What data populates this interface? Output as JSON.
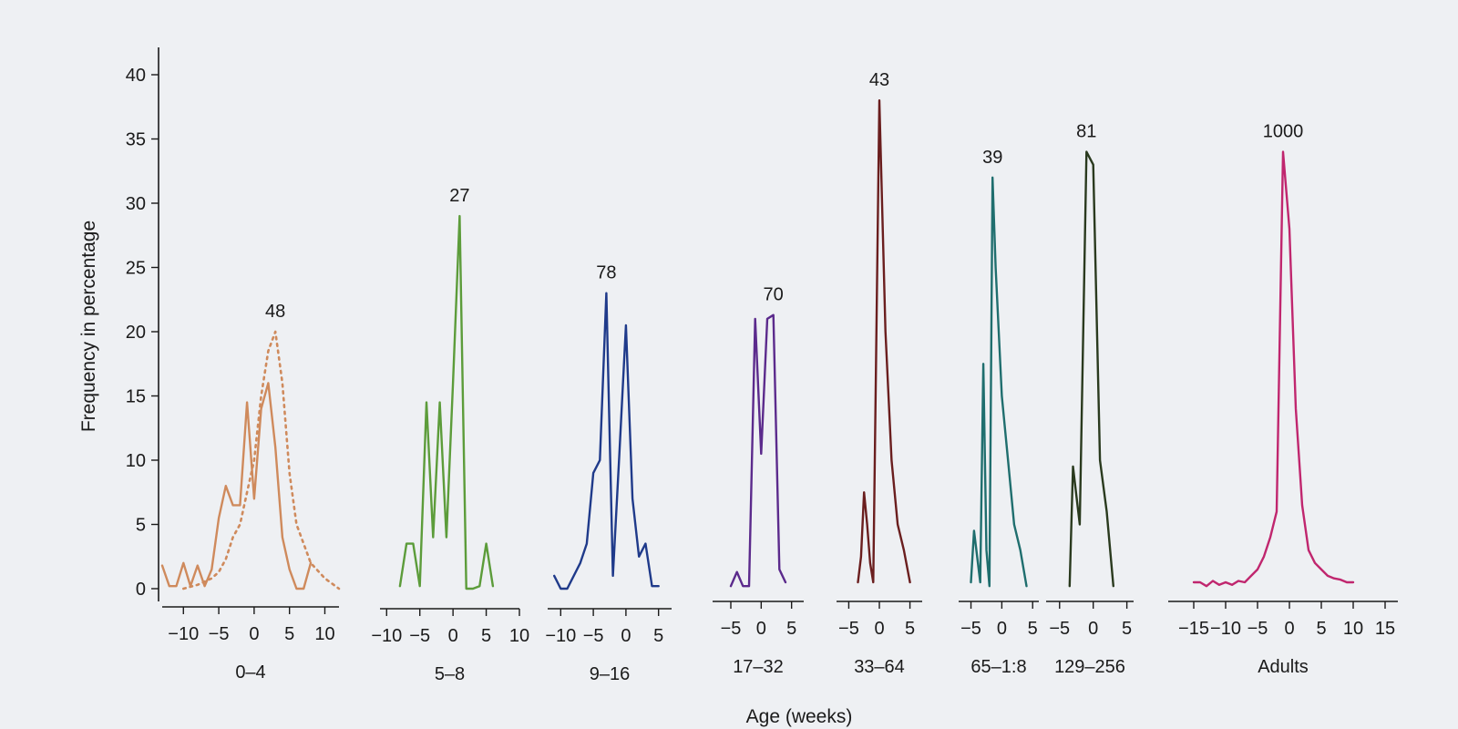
{
  "chart_data": {
    "type": "line",
    "ylabel": "Frequency in percentage",
    "xlabel": "Age (weeks)",
    "ylim": [
      0,
      40
    ],
    "yticks": [
      0,
      5,
      10,
      15,
      20,
      25,
      30,
      35,
      40
    ],
    "grid": false,
    "panels": [
      {
        "label": "0–4",
        "count": "48",
        "color": "#cf8a5c",
        "xlim": [
          -13,
          12
        ],
        "xticks": [
          -10,
          -5,
          0,
          5,
          10
        ],
        "xtick_labels": [
          "−10",
          "−5",
          "0",
          "5",
          "10"
        ],
        "series": [
          {
            "style": "solid",
            "x": [
              -13,
              -12,
              -11,
              -10,
              -9,
              -8,
              -7,
              -6,
              -5,
              -4,
              -3,
              -2,
              -1,
              0,
              1,
              2,
              3,
              4,
              5,
              6,
              7,
              8
            ],
            "y": [
              1.8,
              0.2,
              0.2,
              2,
              0.2,
              1.8,
              0.2,
              1.5,
              5.5,
              8,
              6.5,
              6.5,
              14.5,
              7,
              14,
              16,
              11,
              4,
              1.5,
              0,
              0,
              2
            ]
          },
          {
            "style": "dotted",
            "x": [
              -10,
              -8,
              -6,
              -5,
              -4,
              -3,
              -2,
              -1,
              0,
              1,
              2,
              3,
              4,
              5,
              6,
              7,
              8,
              10,
              12
            ],
            "y": [
              0,
              0.3,
              0.8,
              1.3,
              2.3,
              4,
              5,
              7.5,
              10,
              15,
              18.5,
              20,
              16,
              9,
              5,
              3.5,
              2,
              0.8,
              0
            ]
          }
        ]
      },
      {
        "label": "5–8",
        "count": "27",
        "color": "#5c9c3a",
        "xlim": [
          -11,
          10
        ],
        "xticks": [
          -10,
          -5,
          0,
          5,
          10
        ],
        "xtick_labels": [
          "−10",
          "−5",
          "0",
          "5",
          "10"
        ],
        "series": [
          {
            "style": "solid",
            "x": [
              -8,
              -7,
              -6,
              -5,
              -4,
              -3,
              -2,
              -1,
              0,
              1,
              2,
              3,
              4,
              5,
              6
            ],
            "y": [
              0.2,
              3.5,
              3.5,
              0.2,
              14.5,
              4,
              14.5,
              4,
              16,
              29,
              0,
              0,
              0.2,
              3.5,
              0.2
            ]
          }
        ]
      },
      {
        "label": "9–16",
        "count": "78",
        "color": "#1f3a8a",
        "xlim": [
          -12,
          7
        ],
        "xticks": [
          -10,
          -5,
          0,
          5
        ],
        "xtick_labels": [
          "−10",
          "−5",
          "0",
          "5"
        ],
        "series": [
          {
            "style": "solid",
            "x": [
              -11,
              -10,
              -9,
              -7,
              -6,
              -5,
              -4,
              -3,
              -2,
              -1,
              0,
              1,
              2,
              3,
              4,
              5
            ],
            "y": [
              1,
              0,
              0,
              2,
              3.5,
              9,
              10,
              23,
              1,
              10.5,
              20.5,
              7,
              2.5,
              3.5,
              0.2,
              0.2
            ]
          }
        ]
      },
      {
        "label": "17–32",
        "count": "70",
        "color": "#5b2a8c",
        "xlim": [
          -8,
          7
        ],
        "xticks": [
          -5,
          0,
          5
        ],
        "xtick_labels": [
          "−5",
          "0",
          "5"
        ],
        "series": [
          {
            "style": "solid",
            "x": [
              -5,
              -4,
              -3,
              -2,
              -1,
              0,
              1,
              2,
              3,
              4
            ],
            "y": [
              0.2,
              1.3,
              0.2,
              0.2,
              21,
              10.5,
              21,
              21.3,
              1.5,
              0.5
            ]
          }
        ]
      },
      {
        "label": "33–64",
        "count": "43",
        "color": "#6a1e1e",
        "xlim": [
          -7,
          7
        ],
        "xticks": [
          -5,
          0,
          5
        ],
        "xtick_labels": [
          "−5",
          "0",
          "5"
        ],
        "series": [
          {
            "style": "solid",
            "x": [
              -3.5,
              -3,
              -2.5,
              -2,
              -1.5,
              -1,
              0,
              1,
              2,
              3,
              4,
              5
            ],
            "y": [
              0.5,
              2.5,
              7.5,
              5,
              2,
              0.5,
              38,
              20,
              10,
              5,
              3,
              0.5
            ]
          }
        ]
      },
      {
        "label": "65–1:8",
        "count": "39",
        "color": "#1f6e6e",
        "xlim": [
          -7,
          6
        ],
        "xticks": [
          -5,
          0,
          5
        ],
        "xtick_labels": [
          "−5",
          "0",
          "5"
        ],
        "series": [
          {
            "style": "solid",
            "x": [
              -5,
              -4.5,
              -4,
              -3.5,
              -3,
              -2.5,
              -2,
              -1.5,
              -1,
              0,
              1,
              2,
              3,
              4
            ],
            "y": [
              0.5,
              4.5,
              2.5,
              0.5,
              17.5,
              3,
              0.2,
              32,
              25,
              15,
              10,
              5,
              3,
              0.2
            ]
          }
        ]
      },
      {
        "label": "129–256",
        "count": "81",
        "color": "#2a3a1e",
        "xlim": [
          -7,
          6
        ],
        "xticks": [
          -5,
          0,
          5
        ],
        "xtick_labels": [
          "−5",
          "0",
          "5"
        ],
        "series": [
          {
            "style": "solid",
            "x": [
              -3.5,
              -3,
              -2,
              -1,
              0,
              1,
              2,
              3
            ],
            "y": [
              0.2,
              9.5,
              5,
              34,
              33,
              10,
              6,
              0.2
            ]
          }
        ]
      },
      {
        "label": "Adults",
        "count": "1000",
        "color": "#c0266e",
        "xlim": [
          -19,
          17
        ],
        "xticks": [
          -15,
          -10,
          -5,
          0,
          5,
          10,
          15
        ],
        "xtick_labels": [
          "−15",
          "−10",
          "−5",
          "0",
          "5",
          "10",
          "15"
        ],
        "series": [
          {
            "style": "solid",
            "x": [
              -15,
              -14,
              -13,
              -12,
              -11,
              -10,
              -9,
              -8,
              -7,
              -6,
              -5,
              -4,
              -3,
              -2,
              -1,
              0,
              1,
              2,
              3,
              4,
              5,
              6,
              7,
              8,
              9,
              10
            ],
            "y": [
              0.5,
              0.5,
              0.2,
              0.6,
              0.3,
              0.5,
              0.3,
              0.6,
              0.5,
              1,
              1.5,
              2.5,
              4,
              6,
              34,
              28,
              14,
              6.5,
              3,
              2,
              1.5,
              1,
              0.8,
              0.7,
              0.5,
              0.5
            ]
          }
        ]
      }
    ]
  }
}
